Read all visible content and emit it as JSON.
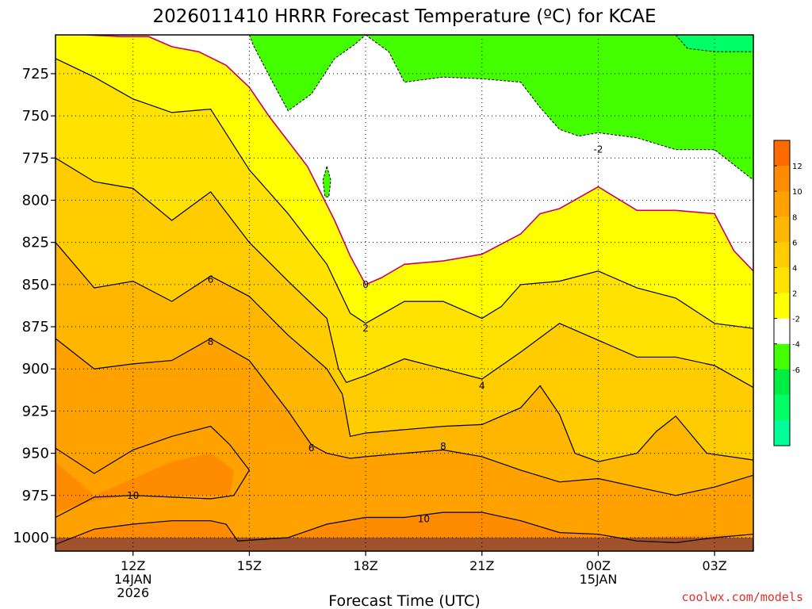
{
  "chart_data": {
    "type": "contour",
    "title": "2026011410 HRRR Forecast Temperature (ºC) for KCAE",
    "xlabel": "Forecast Time (UTC)",
    "ylabel": "",
    "credit": "coolwx.com/models",
    "x_ticks": [
      {
        "hour": 12,
        "lines": [
          "12Z",
          "14JAN",
          "2026"
        ]
      },
      {
        "hour": 15,
        "lines": [
          "15Z"
        ]
      },
      {
        "hour": 18,
        "lines": [
          "18Z"
        ]
      },
      {
        "hour": 21,
        "lines": [
          "21Z"
        ]
      },
      {
        "hour": 24,
        "lines": [
          "00Z",
          "15JAN"
        ]
      },
      {
        "hour": 27,
        "lines": [
          "03Z"
        ]
      }
    ],
    "y_ticks": [
      725,
      750,
      775,
      800,
      825,
      850,
      875,
      900,
      925,
      950,
      975,
      1000
    ],
    "xlim_hours": [
      10,
      28
    ],
    "ylim_hpa": [
      1008,
      702
    ],
    "grid": "dotted",
    "colorbar_ticks": [
      12,
      10,
      8,
      6,
      4,
      2,
      -2,
      -4,
      -6
    ],
    "colorbar_colors": [
      "#ff6a00",
      "#ff8c00",
      "#ffa200",
      "#ffb600",
      "#ffcc00",
      "#ffe200",
      "#ffff00",
      "#ffffff",
      "#44ff00",
      "#00ee44",
      "#00ff66",
      "#00ff99"
    ],
    "fill_colors": {
      "t_8_10": "#ffa200",
      "t_6_8": "#ffb600",
      "t_4_6": "#ffcc00",
      "t_2_4": "#ffe200",
      "t_0_2": "#ffff00",
      "t_m2_0": "#ffffff",
      "t_m4_m2": "#44ff00",
      "t_m6_m4": "#00ff66",
      "t_10_12": "#ff8c00",
      "ground": "#a0522d"
    },
    "contours": {
      "m2": [
        [
          10.8,
          702
        ],
        [
          11.7,
          703
        ],
        [
          12.4,
          703
        ],
        [
          13,
          709
        ],
        [
          13.7,
          712
        ],
        [
          14.4,
          720
        ],
        [
          15,
          733
        ],
        [
          15.5,
          750
        ],
        [
          16.5,
          780
        ],
        [
          17.2,
          812
        ],
        [
          17.6,
          833
        ],
        [
          18,
          850
        ],
        [
          18.4,
          846
        ],
        [
          19,
          838
        ],
        [
          20,
          836
        ],
        [
          21,
          832
        ],
        [
          22,
          820
        ],
        [
          22.5,
          808
        ],
        [
          23,
          805
        ],
        [
          24,
          792
        ],
        [
          25,
          806
        ],
        [
          26,
          806
        ],
        [
          27,
          808
        ],
        [
          27.5,
          830
        ],
        [
          28,
          842
        ]
      ],
      "c0": [
        [
          10,
          716
        ],
        [
          11,
          727
        ],
        [
          12,
          740
        ],
        [
          13,
          748
        ],
        [
          14,
          746
        ],
        [
          15,
          782
        ],
        [
          16,
          808
        ],
        [
          17,
          838
        ],
        [
          17.6,
          867
        ],
        [
          18,
          873
        ],
        [
          19,
          860
        ],
        [
          20,
          860
        ],
        [
          21,
          870
        ],
        [
          21.5,
          863
        ],
        [
          22,
          850
        ],
        [
          23,
          848
        ],
        [
          24,
          842
        ],
        [
          25,
          852
        ],
        [
          26,
          858
        ],
        [
          27,
          873
        ],
        [
          28,
          876
        ]
      ],
      "c2": [
        [
          10,
          775
        ],
        [
          11,
          789
        ],
        [
          12,
          793
        ],
        [
          13,
          812
        ],
        [
          14,
          795
        ],
        [
          15,
          825
        ],
        [
          16,
          848
        ],
        [
          17,
          870
        ],
        [
          17.3,
          900
        ],
        [
          17.5,
          908
        ],
        [
          18,
          904
        ],
        [
          19,
          894
        ],
        [
          20,
          900
        ],
        [
          21,
          906
        ],
        [
          22,
          890
        ],
        [
          23,
          873
        ],
        [
          24,
          883
        ],
        [
          25,
          893
        ],
        [
          26,
          893
        ],
        [
          27,
          898
        ],
        [
          28,
          911
        ]
      ],
      "c4": [
        [
          10,
          825
        ],
        [
          11,
          852
        ],
        [
          12,
          848
        ],
        [
          13,
          860
        ],
        [
          14,
          845
        ],
        [
          15,
          857
        ],
        [
          16,
          880
        ],
        [
          17,
          900
        ],
        [
          17.4,
          915
        ],
        [
          17.6,
          940
        ],
        [
          18,
          938
        ],
        [
          19,
          936
        ],
        [
          20,
          934
        ],
        [
          21,
          933
        ],
        [
          22,
          923
        ],
        [
          22.5,
          910
        ],
        [
          23,
          927
        ],
        [
          23.4,
          950
        ],
        [
          24,
          955
        ],
        [
          25,
          950
        ],
        [
          25.5,
          937
        ],
        [
          26,
          928
        ],
        [
          26.8,
          950
        ],
        [
          28,
          954
        ]
      ],
      "c6": [
        [
          10,
          882
        ],
        [
          11,
          900
        ],
        [
          12,
          897
        ],
        [
          13,
          895
        ],
        [
          14,
          882
        ],
        [
          15,
          895
        ],
        [
          16,
          925
        ],
        [
          16.6,
          945
        ],
        [
          17,
          950
        ],
        [
          17.6,
          953
        ],
        [
          18,
          952
        ],
        [
          19,
          950
        ],
        [
          20,
          948
        ],
        [
          21,
          952
        ],
        [
          22,
          960
        ],
        [
          23,
          967
        ],
        [
          24,
          965
        ],
        [
          25,
          970
        ],
        [
          26,
          975
        ],
        [
          27,
          970
        ],
        [
          28,
          963
        ]
      ],
      "c8": [
        [
          10,
          947
        ],
        [
          11,
          962
        ],
        [
          12,
          948
        ],
        [
          13,
          940
        ],
        [
          14,
          934
        ],
        [
          14.5,
          945
        ],
        [
          15,
          960
        ],
        [
          14.6,
          975
        ],
        [
          14,
          977
        ],
        [
          13,
          976
        ],
        [
          12,
          975
        ],
        [
          11,
          976
        ],
        [
          10,
          988
        ]
      ],
      "c10": [
        [
          10,
          1004
        ],
        [
          11,
          995
        ],
        [
          12,
          992
        ],
        [
          13,
          990
        ],
        [
          14,
          990
        ],
        [
          14.4,
          992
        ],
        [
          14.7,
          1002
        ],
        [
          16,
          1000
        ],
        [
          17,
          992
        ],
        [
          18,
          988
        ],
        [
          19,
          988
        ],
        [
          20,
          985
        ],
        [
          21,
          985
        ],
        [
          22,
          990
        ],
        [
          23,
          997
        ],
        [
          24,
          998
        ],
        [
          25,
          1002
        ],
        [
          26,
          1003
        ],
        [
          27,
          1000
        ],
        [
          28,
          998
        ]
      ]
    }
  }
}
